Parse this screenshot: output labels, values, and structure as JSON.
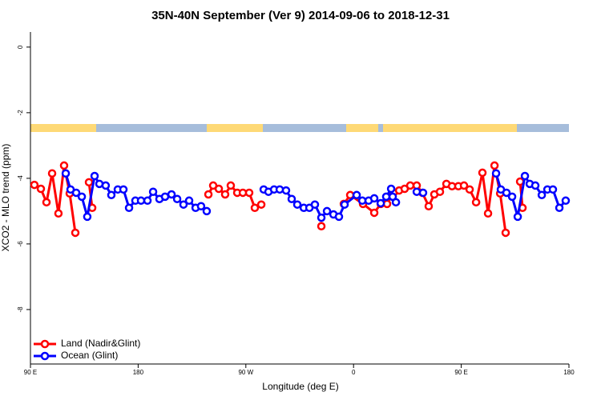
{
  "chart_data": {
    "type": "line",
    "title": "35N-40N September (Ver 9)   2014-09-06 to 2018-12-31",
    "xlabel": "Longitude (deg E)",
    "ylabel": "XCO2 - MLO trend (ppm)",
    "xlim": [
      90,
      540
    ],
    "ylim": [
      -9.66,
      0.46
    ],
    "xticks": [
      {
        "value": 90,
        "label": "90 E"
      },
      180,
      {
        "value": 270,
        "label": "90 W"
      },
      {
        "value": 360,
        "label": "0"
      },
      {
        "value": 450,
        "label": "90 E"
      },
      {
        "value": 540,
        "label": "180"
      }
    ],
    "yticks": [
      0,
      -2,
      -4,
      -6,
      -8
    ],
    "legend": "bottom-left",
    "series": [
      {
        "name": "Land (Nadir&Glint)",
        "color": "#ff0000",
        "x": [
          93.3,
          98.7,
          103.4,
          108.1,
          113.4,
          118.1,
          122.8,
          127.5,
          null,
          138.9,
          141.6,
          null,
          238.7,
          242.7,
          247.4,
          252.7,
          257.4,
          262.8,
          267.5,
          272.8,
          277.5,
          282.9,
          null,
          333.1,
          null,
          351.9,
          357.2,
          367.9,
          377.3,
          382.7,
          388.0,
          393.4,
          398.1,
          402.7,
          407.4,
          412.8,
          417.5,
          422.8,
          427.5,
          432.2,
          437.6,
          442.3,
          447.6,
          452.3,
          457.0,
          462.4,
          467.7,
          472.4,
          477.8,
          482.5,
          487.1,
          null,
          499.2,
          501.2
        ],
        "values": [
          -4.2,
          -4.32,
          -4.73,
          -3.85,
          -5.07,
          -3.61,
          -4.46,
          -5.66,
          null,
          -4.12,
          -4.9,
          null,
          -4.49,
          -4.22,
          -4.32,
          -4.49,
          -4.22,
          -4.44,
          -4.44,
          -4.44,
          -4.9,
          -4.8,
          null,
          -5.46,
          null,
          -4.78,
          -4.51,
          -4.78,
          -5.05,
          -4.78,
          -4.78,
          -4.44,
          -4.37,
          -4.32,
          -4.22,
          -4.22,
          -4.44,
          -4.85,
          -4.49,
          -4.41,
          -4.17,
          -4.24,
          -4.24,
          -4.22,
          -4.34,
          -4.73,
          -3.83,
          -5.07,
          -3.61,
          -4.46,
          -5.66,
          null,
          -4.1,
          -4.9
        ]
      },
      {
        "name": "Ocean (Glint)",
        "color": "#0000ff",
        "x": [
          119.5,
          123.5,
          128.2,
          132.9,
          137.5,
          143.6,
          147.6,
          152.9,
          157.6,
          163.0,
          167.7,
          172.4,
          177.7,
          182.4,
          187.8,
          192.5,
          197.8,
          202.5,
          207.9,
          212.6,
          217.9,
          222.6,
          228.0,
          232.6,
          237.3,
          null,
          284.9,
          288.9,
          293.6,
          298.3,
          303.6,
          308.3,
          313.0,
          318.4,
          323.1,
          327.7,
          333.1,
          337.8,
          343.2,
          347.8,
          352.5,
          362.6,
          367.3,
          372.6,
          377.3,
          382.7,
          387.3,
          391.4,
          392.7,
          395.4,
          null,
          412.8,
          418.1,
          null,
          479.1,
          483.1,
          487.8,
          492.5,
          497.2,
          503.2,
          507.2,
          511.9,
          517.3,
          522.0,
          526.6,
          532.0,
          537.3
        ],
        "values": [
          -3.85,
          -4.34,
          -4.44,
          -4.56,
          -5.17,
          -3.93,
          -4.17,
          -4.22,
          -4.51,
          -4.34,
          -4.34,
          -4.9,
          -4.68,
          -4.68,
          -4.68,
          -4.41,
          -4.63,
          -4.56,
          -4.49,
          -4.63,
          -4.8,
          -4.68,
          -4.9,
          -4.85,
          -5.0,
          null,
          -4.34,
          -4.41,
          -4.34,
          -4.34,
          -4.37,
          -4.63,
          -4.8,
          -4.9,
          -4.9,
          -4.8,
          -5.2,
          -5.0,
          -5.1,
          -5.17,
          -4.8,
          -4.51,
          -4.68,
          -4.68,
          -4.61,
          -4.76,
          -4.56,
          -4.32,
          -4.56,
          -4.73,
          null,
          -4.41,
          -4.44,
          null,
          -3.85,
          -4.34,
          -4.44,
          -4.56,
          -5.17,
          -3.93,
          -4.17,
          -4.22,
          -4.51,
          -4.34,
          -4.34,
          -4.9,
          -4.68
        ]
      }
    ]
  }
}
